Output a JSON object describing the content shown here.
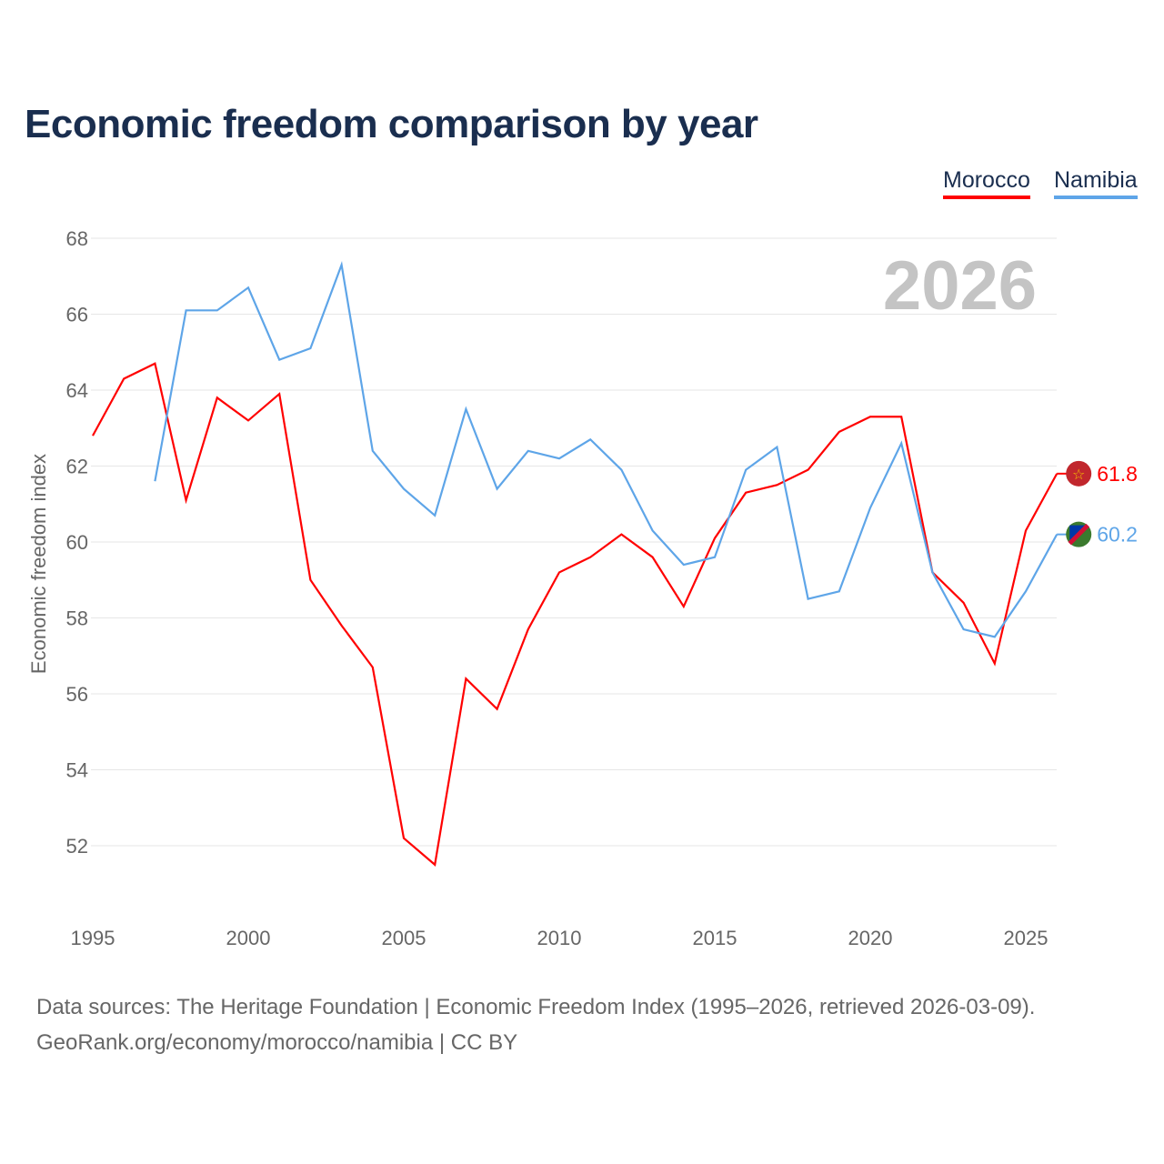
{
  "chart_data": {
    "type": "line",
    "title": "Economic freedom comparison by year",
    "ylabel": "Economic freedom index",
    "xlabel": "",
    "ylim": [
      50,
      68
    ],
    "xlim": [
      1995,
      2026
    ],
    "yticks": [
      52,
      54,
      56,
      58,
      60,
      62,
      64,
      66,
      68
    ],
    "xticks": [
      1995,
      2000,
      2005,
      2010,
      2015,
      2020,
      2025
    ],
    "watermark_year": "2026",
    "grid": true,
    "legend_position": "top-right",
    "series": [
      {
        "name": "Morocco",
        "color": "#ff0000",
        "end_label": "61.8",
        "x": [
          1995,
          1996,
          1997,
          1998,
          1999,
          2000,
          2001,
          2002,
          2003,
          2004,
          2005,
          2006,
          2007,
          2008,
          2009,
          2010,
          2011,
          2012,
          2013,
          2014,
          2015,
          2016,
          2017,
          2018,
          2019,
          2020,
          2021,
          2022,
          2023,
          2024,
          2025,
          2026
        ],
        "values": [
          62.8,
          64.3,
          64.7,
          61.1,
          63.8,
          63.2,
          63.9,
          59.0,
          57.8,
          56.7,
          52.2,
          51.5,
          56.4,
          55.6,
          57.7,
          59.2,
          59.6,
          60.2,
          59.6,
          58.3,
          60.1,
          61.3,
          61.5,
          61.9,
          62.9,
          63.3,
          63.3,
          59.2,
          58.4,
          56.8,
          60.3,
          61.8
        ]
      },
      {
        "name": "Namibia",
        "color": "#5ea5e8",
        "end_label": "60.2",
        "x": [
          1997,
          1998,
          1999,
          2000,
          2001,
          2002,
          2003,
          2004,
          2005,
          2006,
          2007,
          2008,
          2009,
          2010,
          2011,
          2012,
          2013,
          2014,
          2015,
          2016,
          2017,
          2018,
          2019,
          2020,
          2021,
          2022,
          2023,
          2024,
          2025,
          2026
        ],
        "values": [
          61.6,
          66.1,
          66.1,
          66.7,
          64.8,
          65.1,
          67.3,
          62.4,
          61.4,
          60.7,
          63.5,
          61.4,
          62.4,
          62.2,
          62.7,
          61.9,
          60.3,
          59.4,
          59.6,
          61.9,
          62.5,
          58.5,
          58.7,
          60.9,
          62.6,
          59.2,
          57.7,
          57.5,
          58.7,
          60.2
        ]
      }
    ]
  },
  "source_line1": "Data sources: The Heritage Foundation | Economic Freedom Index (1995–2026, retrieved 2026-03-09).",
  "source_line2": "GeoRank.org/economy/morocco/namibia | CC BY"
}
